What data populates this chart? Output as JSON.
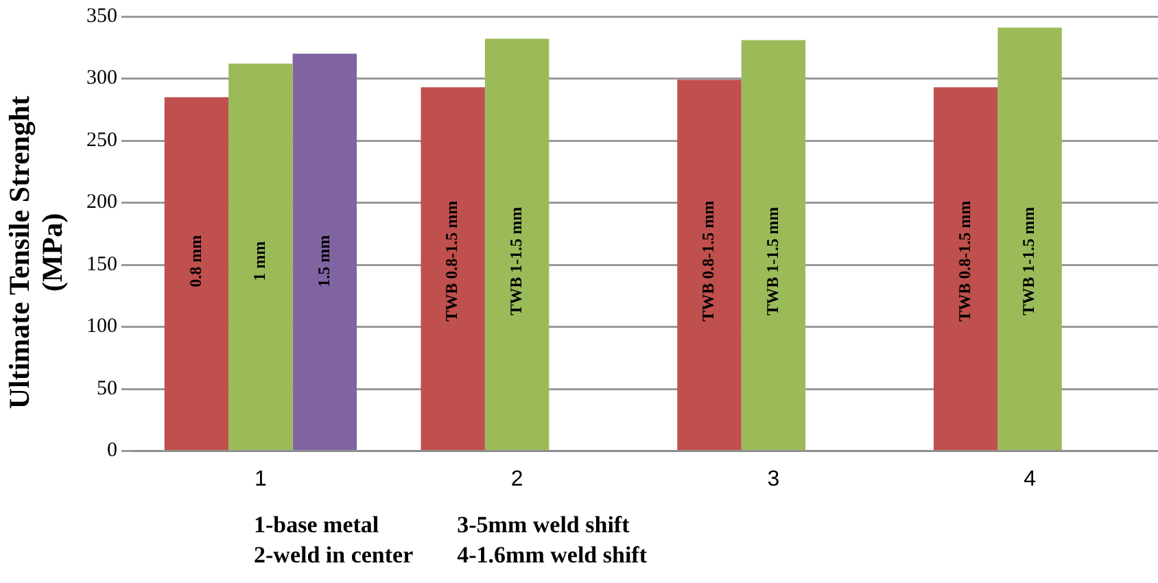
{
  "chart_data": {
    "type": "bar",
    "ylabel": "Ultimate Tensile Strenght (MPa)",
    "categories": [
      "1",
      "2",
      "3",
      "4"
    ],
    "series": [
      {
        "color": "#c0504d",
        "values": [
          285,
          293,
          299,
          293
        ]
      },
      {
        "color": "#9bbb59",
        "values": [
          312,
          332,
          331,
          341
        ]
      },
      {
        "color": "#8064a2",
        "values": [
          320,
          null,
          null,
          null
        ]
      }
    ],
    "ylim": [
      0,
      350
    ],
    "yticks": [
      0,
      50,
      100,
      150,
      200,
      250,
      300,
      350
    ],
    "grid": "y",
    "legend": false,
    "annotations": [
      "0.8 mm",
      "1 mm",
      "1.5 mm",
      "TWB 0.8-1.5 mm",
      "TWB 1-1.5 mm",
      "TWB 0.8-1.5 mm",
      "TWB 1-1.5 mm",
      "TWB 0.8-1.5 mm",
      "TWB 1-1.5 mm",
      "1-base metal",
      "2-weld in center",
      "3-5mm weld shift",
      "4-1.6mm weld shift"
    ]
  }
}
